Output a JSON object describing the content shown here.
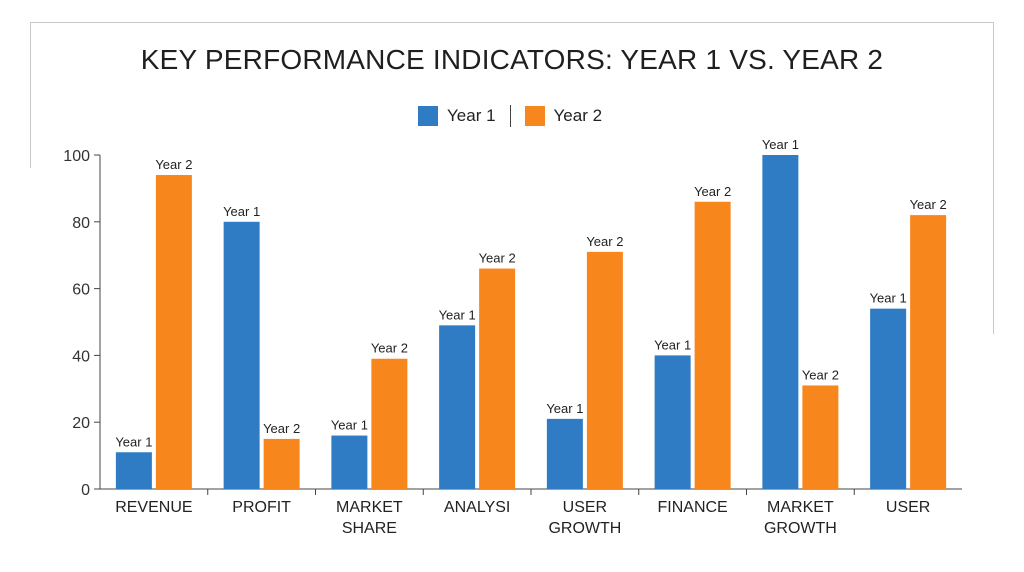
{
  "chart_data": {
    "type": "bar",
    "title": "KEY PERFORMANCE INDICATORS: YEAR 1 VS. YEAR 2",
    "categories": [
      [
        "REVENUE"
      ],
      [
        "PROFIT"
      ],
      [
        "MARKET",
        "SHARE"
      ],
      [
        "ANALYSI"
      ],
      [
        "USER",
        "GROWTH"
      ],
      [
        "FINANCE"
      ],
      [
        "MARKET",
        "GROWTH"
      ],
      [
        "USER"
      ]
    ],
    "series": [
      {
        "name": "Year 1",
        "color": "#2f7cc4",
        "values": [
          11,
          80,
          16,
          49,
          21,
          40,
          100,
          54
        ]
      },
      {
        "name": "Year 2",
        "color": "#f7861d",
        "values": [
          94,
          15,
          39,
          66,
          71,
          86,
          31,
          82
        ]
      }
    ],
    "ylim": [
      0,
      100
    ],
    "yticks": [
      0,
      20,
      40,
      60,
      80,
      100
    ],
    "legend_position": "top-center",
    "grid": false,
    "xlabel": "",
    "ylabel": ""
  }
}
